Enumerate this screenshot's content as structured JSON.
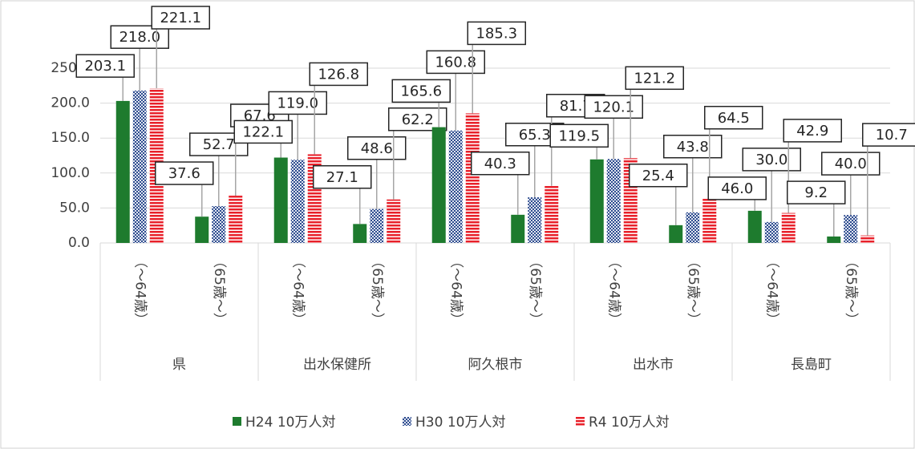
{
  "chart_data": {
    "type": "bar",
    "categories": [
      "（～64歳）",
      "（65歳～）",
      "（～64歳）",
      "（65歳～）",
      "（～64歳）",
      "（65歳～）",
      "（～64歳）",
      "（65歳～）",
      "（～64歳）",
      "（65歳～）"
    ],
    "groups": [
      "県",
      "出水保健所",
      "阿久根市",
      "出水市",
      "長島町"
    ],
    "series": [
      {
        "name": "H24 10万人対",
        "color": "#1e7b2e",
        "pattern": "solid",
        "values": [
          203.1,
          37.6,
          122.1,
          27.1,
          165.6,
          40.3,
          119.5,
          25.4,
          46.0,
          9.2
        ],
        "value_labels": [
          "203.1",
          "37.6",
          "122.1",
          "27.1",
          "165.6",
          "40.3",
          "119.5",
          "25.4",
          "46.0",
          "9.2"
        ]
      },
      {
        "name": "H30 10万人対",
        "color": "#2f4d8f",
        "pattern": "dots",
        "values": [
          218.0,
          52.7,
          119.0,
          48.6,
          160.8,
          65.3,
          120.1,
          43.8,
          30.0,
          40.0
        ],
        "value_labels": [
          "218.0",
          "52.7",
          "119.0",
          "48.6",
          "160.8",
          "65.3",
          "120.1",
          "43.8",
          "30.0",
          "40.0"
        ]
      },
      {
        "name": "R4 10万人対",
        "color": "#e8202a",
        "pattern": "stripes",
        "values": [
          221.1,
          67.6,
          126.8,
          62.2,
          185.3,
          81.7,
          121.2,
          64.5,
          42.9,
          10.7
        ],
        "value_labels": [
          "221.1",
          "67.6",
          "126.8",
          "62.2",
          "185.3",
          "81.7",
          "121.2",
          "64.5",
          "42.9",
          "10.7"
        ]
      }
    ],
    "ylim": [
      0,
      250
    ],
    "yticks": [
      {
        "value": 0,
        "label": "0.0"
      },
      {
        "value": 50,
        "label": "50.0"
      },
      {
        "value": 100,
        "label": "100.0"
      },
      {
        "value": 150,
        "label": "150.0"
      },
      {
        "value": 200,
        "label": "200.0"
      },
      {
        "value": 250,
        "label": "250.0"
      }
    ],
    "grid": true,
    "legend": "bottom"
  }
}
